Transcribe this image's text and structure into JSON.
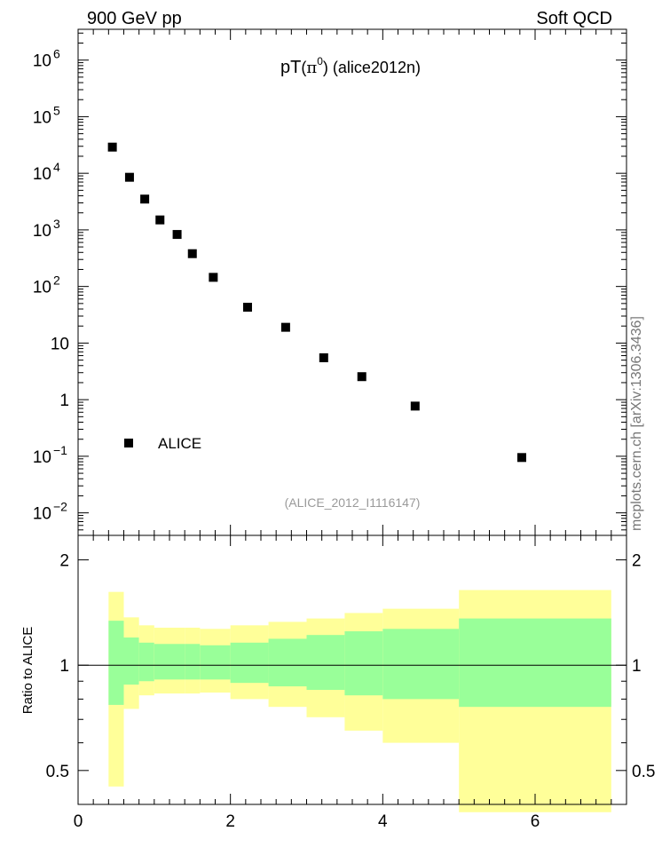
{
  "header": {
    "left": "900 GeV pp",
    "right": "Soft QCD"
  },
  "side_label": "mcplots.cern.ch [arXiv:1306.3436]",
  "chart_data": [
    {
      "type": "scatter",
      "title_main": "pT",
      "title_particle": "π",
      "title_sup": "0",
      "title_suffix": "(alice2012n)",
      "reference_label": "(ALICE_2012_I1116147)",
      "y_scale": "log",
      "xlim": [
        0,
        7.2
      ],
      "ylim": [
        0.004,
        3500000
      ],
      "y_tick_labels": [
        {
          "v": 0.01,
          "base": "10",
          "exp": "−2"
        },
        {
          "v": 0.1,
          "base": "10",
          "exp": "−1"
        },
        {
          "v": 1,
          "base": "1",
          "exp": ""
        },
        {
          "v": 10,
          "base": "10",
          "exp": ""
        },
        {
          "v": 100,
          "base": "10",
          "exp": "2"
        },
        {
          "v": 1000,
          "base": "10",
          "exp": "3"
        },
        {
          "v": 10000,
          "base": "10",
          "exp": "4"
        },
        {
          "v": 100000,
          "base": "10",
          "exp": "5"
        },
        {
          "v": 1000000,
          "base": "10",
          "exp": "6"
        }
      ],
      "legend": {
        "label": "ALICE",
        "position": "bottom-left"
      },
      "series": [
        {
          "name": "ALICE",
          "x": [
            0.45,
            0.675,
            0.875,
            1.075,
            1.3,
            1.5,
            1.775,
            2.225,
            2.725,
            3.225,
            3.725,
            4.425,
            5.825
          ],
          "y": [
            29000,
            8500,
            3500,
            1500,
            830,
            380,
            145,
            43,
            19,
            5.5,
            2.55,
            0.77,
            0.095
          ]
        }
      ]
    },
    {
      "type": "area",
      "ylabel": "Ratio to ALICE",
      "xlim": [
        0,
        7.2
      ],
      "ylim": [
        0.4,
        2.35
      ],
      "y_ticks": [
        0.5,
        1,
        2
      ],
      "y_tick_labels": [
        "0.5",
        "1",
        "2"
      ],
      "x_ticks": [
        0,
        2,
        4,
        6
      ],
      "x_tick_labels": [
        "0",
        "2",
        "4",
        "6"
      ],
      "reference_line": 1,
      "band_colors": {
        "outer": "#ffff99",
        "inner": "#99ff99"
      },
      "bins": [
        {
          "x0": 0.4,
          "x1": 0.6,
          "outer": [
            0.45,
            1.62
          ],
          "inner": [
            0.77,
            1.34
          ]
        },
        {
          "x0": 0.6,
          "x1": 0.8,
          "outer": [
            0.75,
            1.37
          ],
          "inner": [
            0.88,
            1.2
          ]
        },
        {
          "x0": 0.8,
          "x1": 1.0,
          "outer": [
            0.82,
            1.3
          ],
          "inner": [
            0.9,
            1.16
          ]
        },
        {
          "x0": 1.0,
          "x1": 1.2,
          "outer": [
            0.83,
            1.28
          ],
          "inner": [
            0.91,
            1.15
          ]
        },
        {
          "x0": 1.2,
          "x1": 1.4,
          "outer": [
            0.83,
            1.28
          ],
          "inner": [
            0.91,
            1.15
          ]
        },
        {
          "x0": 1.4,
          "x1": 1.6,
          "outer": [
            0.83,
            1.28
          ],
          "inner": [
            0.91,
            1.15
          ]
        },
        {
          "x0": 1.6,
          "x1": 2.0,
          "outer": [
            0.835,
            1.27
          ],
          "inner": [
            0.91,
            1.14
          ]
        },
        {
          "x0": 2.0,
          "x1": 2.5,
          "outer": [
            0.8,
            1.3
          ],
          "inner": [
            0.89,
            1.16
          ]
        },
        {
          "x0": 2.5,
          "x1": 3.0,
          "outer": [
            0.76,
            1.33
          ],
          "inner": [
            0.87,
            1.19
          ]
        },
        {
          "x0": 3.0,
          "x1": 3.5,
          "outer": [
            0.71,
            1.36
          ],
          "inner": [
            0.85,
            1.22
          ]
        },
        {
          "x0": 3.5,
          "x1": 4.0,
          "outer": [
            0.65,
            1.41
          ],
          "inner": [
            0.82,
            1.25
          ]
        },
        {
          "x0": 4.0,
          "x1": 5.0,
          "outer": [
            0.6,
            1.45
          ],
          "inner": [
            0.8,
            1.27
          ]
        },
        {
          "x0": 5.0,
          "x1": 7.0,
          "outer": [
            0.38,
            1.64
          ],
          "inner": [
            0.76,
            1.36
          ]
        }
      ]
    }
  ]
}
